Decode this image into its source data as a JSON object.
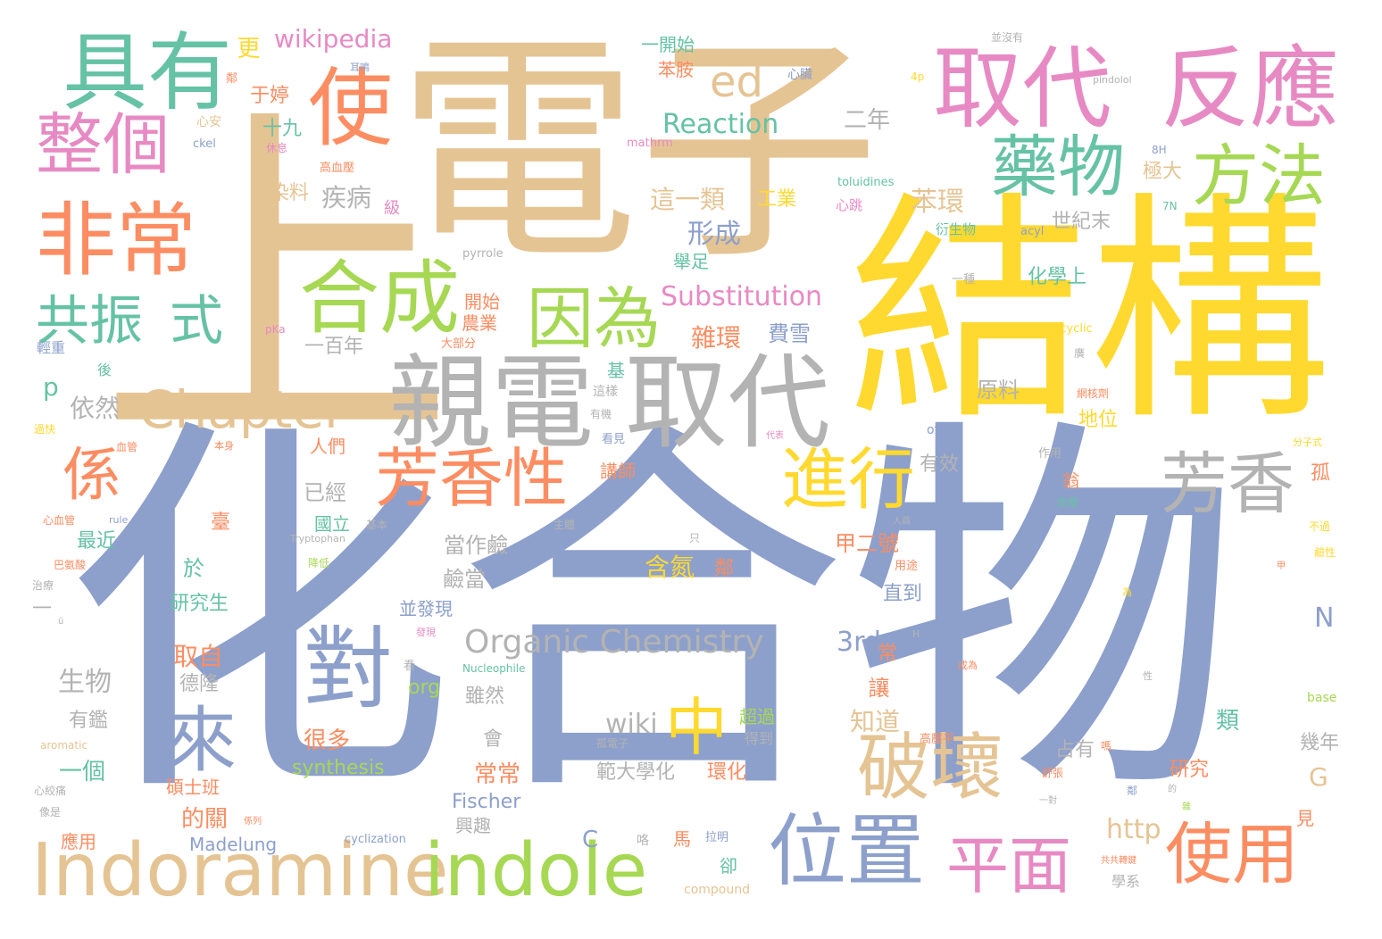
{
  "palette": {
    "blue": "#8DA0CB",
    "tan": "#E5C494",
    "yellow": "#FFD92F",
    "green": "#66C2A5",
    "orange": "#FC8D62",
    "pink": "#E78AC3",
    "lime": "#A6D854",
    "gray": "#B3B3B3"
  },
  "words": [
    "化合物",
    "電子",
    "上",
    "結構",
    "親電",
    "取代",
    "Indoramine",
    "indole",
    "位置",
    "芳香性",
    "反應",
    "取代",
    "具有",
    "非常",
    "整個",
    "使",
    "合成",
    "因為",
    "藥物",
    "方法",
    "共振",
    "式",
    "Chapter",
    "係",
    "對",
    "來",
    "中",
    "破壞",
    "芳香",
    "進行",
    "平面",
    "使用",
    "ed",
    "Organic Chemistry",
    "Substitution",
    "Reaction",
    "wikipedia",
    "更",
    "一開始",
    "苯胺",
    "十九",
    "于婷",
    "心安",
    "ckel",
    "休息",
    "高血壓",
    "mathrm",
    "二年",
    "心臟",
    "4p",
    "pindolol",
    "並沒有",
    "耳鳴",
    "鄰",
    "染料",
    "疾病",
    "級",
    "這一類",
    "工業",
    "心跳",
    "toluidines",
    "苯環",
    "極大",
    "8H",
    "衍生物",
    "acyl",
    "世紀末",
    "7N",
    "形成",
    "舉足",
    "pyrrole",
    "開始",
    "農業",
    "一種",
    "化學上",
    "heterocyclic",
    "一百年",
    "大部分",
    "雜環",
    "費雪",
    "輕重",
    "pKa",
    "p",
    "後",
    "依然",
    "基",
    "原料",
    "這樣",
    "有機",
    "廣",
    "網核劑",
    "地位",
    "of",
    "過快",
    "血管",
    "人們",
    "本身",
    "看見",
    "代表",
    "已經",
    "講師",
    "有效",
    "作用",
    "翁",
    "孤",
    "分子式",
    "心血管",
    "rule",
    "最近",
    "國立",
    "基本",
    "主體",
    "Tryptophan",
    "當作鹼",
    "甲二號",
    "血壓",
    "不過",
    "臺",
    "只",
    "巴氨酸",
    "降低",
    "於",
    "鹼當",
    "用途",
    "鹼性",
    "治療",
    "含氮",
    "鄰",
    "研究生",
    "並發現",
    "直到",
    "N",
    "為",
    "一",
    "ü",
    "取自",
    "3rd",
    "常",
    "H",
    "Nucleophile",
    "看",
    "發現",
    "成為",
    "生物",
    "德隆",
    "org",
    "雖然",
    "讓",
    "性",
    "有鑑",
    "wiki",
    "知道",
    "base",
    "很多",
    "會",
    "超過",
    "得到",
    "類",
    "幾年",
    "aromatic",
    "孤電子",
    "高壓平",
    "占有",
    "一個",
    "synthesis",
    "常常",
    "範大學化",
    "環化",
    "研究",
    "心絞痛",
    "碩士班",
    "舒張",
    "Fischer",
    "G",
    "像是",
    "的關",
    "係列",
    "見",
    "興趣",
    "cyclization",
    "拉明",
    "應用",
    "Madelung",
    "C",
    "咯",
    "馬",
    "卻",
    "http",
    "學系",
    "compound",
    "一對",
    "共共轉鍵",
    "鄰",
    "嗎",
    "的",
    "雜",
    "人員",
    "甲"
  ]
}
